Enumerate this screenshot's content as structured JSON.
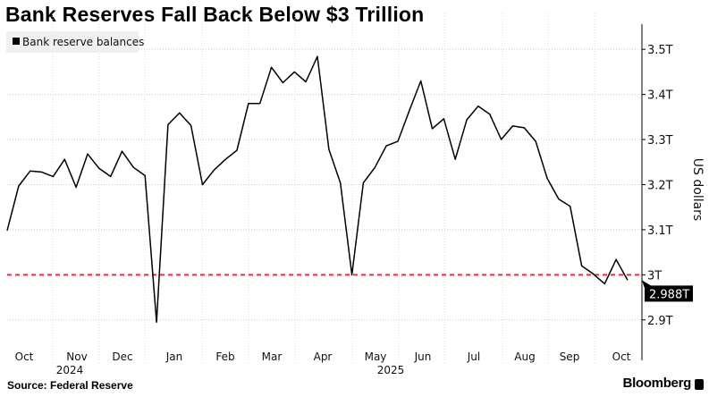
{
  "title": "Bank Reserves Fall Back Below $3 Trillion",
  "source": "Source: Federal Reserve",
  "brand": "Bloomberg",
  "chart_data": {
    "type": "line",
    "legend": {
      "entries": [
        "Bank reserve balances"
      ],
      "placement": "top-left"
    },
    "ylabel": "US dollars",
    "ylim": [
      2.85,
      3.54
    ],
    "yticks": [
      2.9,
      3.0,
      3.1,
      3.2,
      3.3,
      3.4,
      3.5
    ],
    "ytick_labels": [
      "2.9T",
      "3T",
      "3.1T",
      "3.2T",
      "3.3T",
      "3.4T",
      "3.5T"
    ],
    "xlim": [
      "2024-10-02",
      "2025-10-15"
    ],
    "xtick_labels": [
      "Oct",
      "Nov",
      "Dec",
      "Jan",
      "Feb",
      "Mar",
      "Apr",
      "May",
      "Jun",
      "Jul",
      "Aug",
      "Sep",
      "Oct"
    ],
    "year_labels": [
      "2024",
      "2025"
    ],
    "grid": true,
    "reference_line": {
      "value": 3.0,
      "color": "#e8294a",
      "style": "dashed"
    },
    "last_value_label": "2.988T",
    "colors": {
      "line": "#000000",
      "reference": "#e8294a",
      "label_bg": "#000000"
    },
    "series": [
      {
        "name": "Bank reserve balances",
        "x": [
          "2024-10-02",
          "2024-10-09",
          "2024-10-16",
          "2024-10-23",
          "2024-10-30",
          "2024-11-06",
          "2024-11-13",
          "2024-11-20",
          "2024-11-27",
          "2024-12-04",
          "2024-12-11",
          "2024-12-18",
          "2024-12-25",
          "2025-01-01",
          "2025-01-08",
          "2025-01-15",
          "2025-01-22",
          "2025-01-29",
          "2025-02-05",
          "2025-02-12",
          "2025-02-19",
          "2025-02-26",
          "2025-03-05",
          "2025-03-12",
          "2025-03-19",
          "2025-03-26",
          "2025-04-02",
          "2025-04-09",
          "2025-04-16",
          "2025-04-23",
          "2025-04-30",
          "2025-05-07",
          "2025-05-14",
          "2025-05-21",
          "2025-05-28",
          "2025-06-04",
          "2025-06-11",
          "2025-06-18",
          "2025-06-25",
          "2025-07-02",
          "2025-07-09",
          "2025-07-16",
          "2025-07-23",
          "2025-07-30",
          "2025-08-06",
          "2025-08-13",
          "2025-08-20",
          "2025-08-27",
          "2025-09-03",
          "2025-09-10",
          "2025-09-17",
          "2025-09-24",
          "2025-10-01",
          "2025-10-08",
          "2025-10-15"
        ],
        "values": [
          3.098,
          3.197,
          3.23,
          3.228,
          3.218,
          3.256,
          3.194,
          3.268,
          3.236,
          3.218,
          3.274,
          3.238,
          3.22,
          2.895,
          3.333,
          3.359,
          3.331,
          3.2,
          3.232,
          3.256,
          3.276,
          3.38,
          3.38,
          3.46,
          3.426,
          3.45,
          3.428,
          3.484,
          3.278,
          3.204,
          3.0,
          3.204,
          3.238,
          3.286,
          3.296,
          3.364,
          3.43,
          3.324,
          3.346,
          3.256,
          3.344,
          3.374,
          3.356,
          3.3,
          3.33,
          3.326,
          3.296,
          3.214,
          3.168,
          3.152,
          3.02,
          3.002,
          2.98,
          3.034,
          2.988
        ]
      }
    ]
  }
}
